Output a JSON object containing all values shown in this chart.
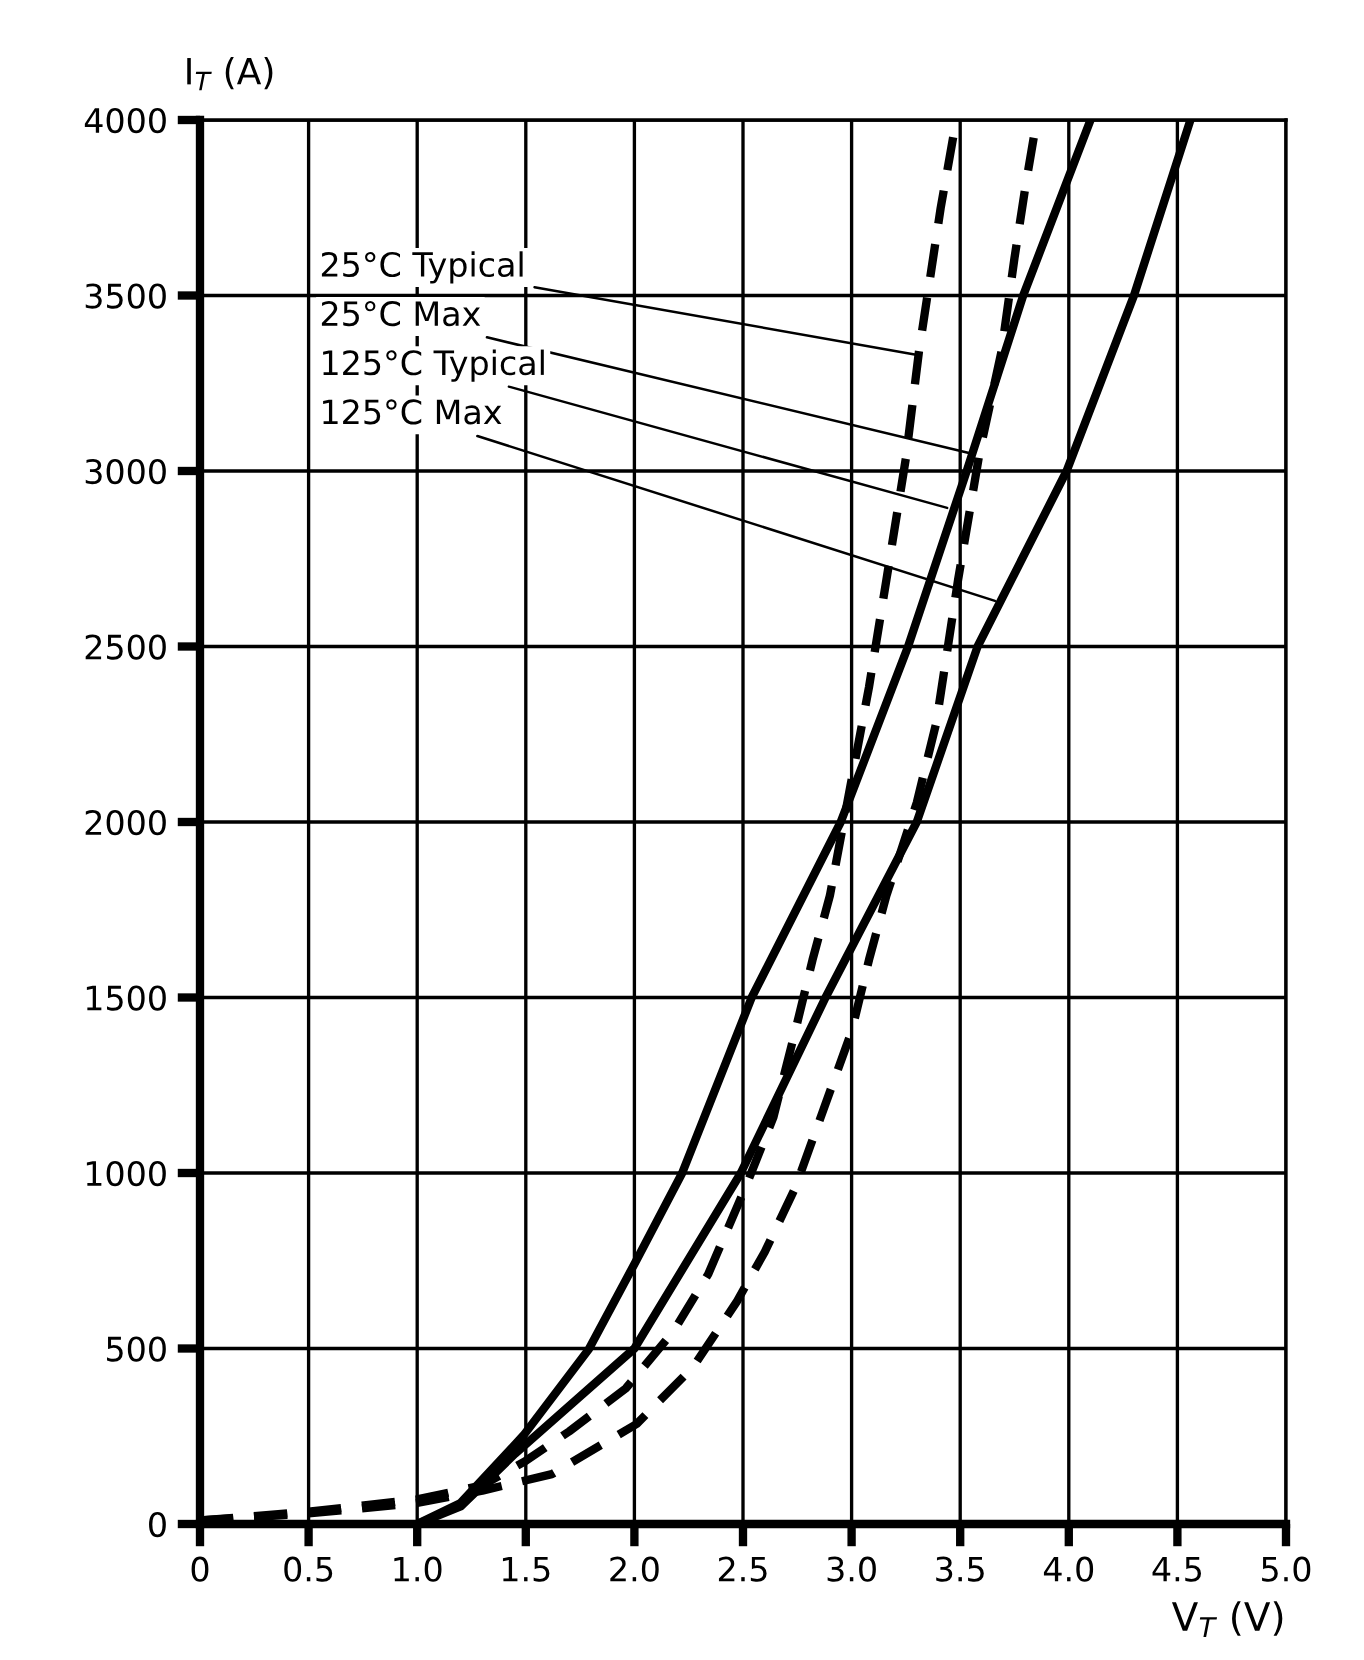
{
  "chart_data": {
    "type": "line",
    "xlabel": "V$_{T}$ (V)",
    "ylabel": "I$_{T}$ (A)",
    "xlim": [
      0,
      5
    ],
    "ylim": [
      0,
      4000
    ],
    "xticks": [
      0,
      0.5,
      {
        "value": 1,
        "label": "1.0"
      },
      1.5,
      {
        "value": 2,
        "label": "2.0"
      },
      2.5,
      {
        "value": 3,
        "label": "3.0"
      },
      3.5,
      {
        "value": 4,
        "label": "4.0"
      },
      4.5,
      {
        "value": 5,
        "label": "5.0"
      }
    ],
    "yticks": [
      0,
      500,
      1000,
      1500,
      2000,
      2500,
      3000,
      3500,
      4000
    ],
    "grid": true,
    "marker": "none",
    "series": [
      {
        "color": "#000000",
        "line_style": "dashed",
        "x": [
          0,
          0.5,
          1.0,
          1.3,
          1.5,
          1.7,
          1.96,
          2.18,
          2.34,
          2.51,
          2.64,
          2.74,
          2.82,
          2.9,
          2.98,
          3.08,
          3.16,
          3.25,
          3.31,
          3.36,
          3.41,
          3.48
        ],
        "values": [
          10,
          35,
          70,
          110,
          180,
          264,
          386,
          549,
          712,
          957,
          1159,
          1403,
          1607,
          1790,
          2055,
          2384,
          2689,
          3037,
          3340,
          3544,
          3749,
          3994
        ]
      },
      {
        "color": "#000000",
        "line_style": "dashed",
        "x": [
          0,
          0.5,
          1.0,
          1.3,
          1.62,
          2.01,
          2.27,
          2.47,
          2.6,
          2.74,
          2.87,
          3.0,
          3.08,
          3.16,
          3.3,
          3.39,
          3.49,
          3.59,
          3.69,
          3.75,
          3.8,
          3.85
        ],
        "values": [
          10,
          30,
          60,
          95,
          142,
          285,
          447,
          632,
          775,
          957,
          1180,
          1403,
          1607,
          1790,
          2055,
          2283,
          2689,
          3055,
          3340,
          3607,
          3809,
          3992
        ]
      },
      {
        "color": "#000000",
        "line_style": "solid",
        "x": [
          1.0,
          1.2,
          1.49,
          1.79,
          2.01,
          2.22,
          2.54,
          2.95,
          3.26,
          3.53,
          3.79,
          4.1
        ],
        "values": [
          0,
          60,
          253,
          498,
          752,
          1000,
          1500,
          2000,
          2500,
          3000,
          3500,
          4000
        ]
      },
      {
        "color": "#000000",
        "line_style": "solid",
        "x": [
          1.0,
          1.2,
          1.45,
          2.0,
          2.49,
          2.88,
          3.3,
          3.58,
          3.99,
          4.3,
          4.56
        ],
        "values": [
          0,
          50,
          200,
          500,
          1000,
          1500,
          2000,
          2500,
          3000,
          3500,
          4000
        ]
      }
    ],
    "annotations": [
      {
        "text": "25°C Typical",
        "x": 3.31,
        "y": 3330
      },
      {
        "text": "25°C Max",
        "x": 3.55,
        "y": 3050
      },
      {
        "text": "125°C Typical",
        "x": 3.44,
        "y": 2895
      },
      {
        "text": "125°C Max",
        "x": 3.66,
        "y": 2630
      }
    ]
  }
}
